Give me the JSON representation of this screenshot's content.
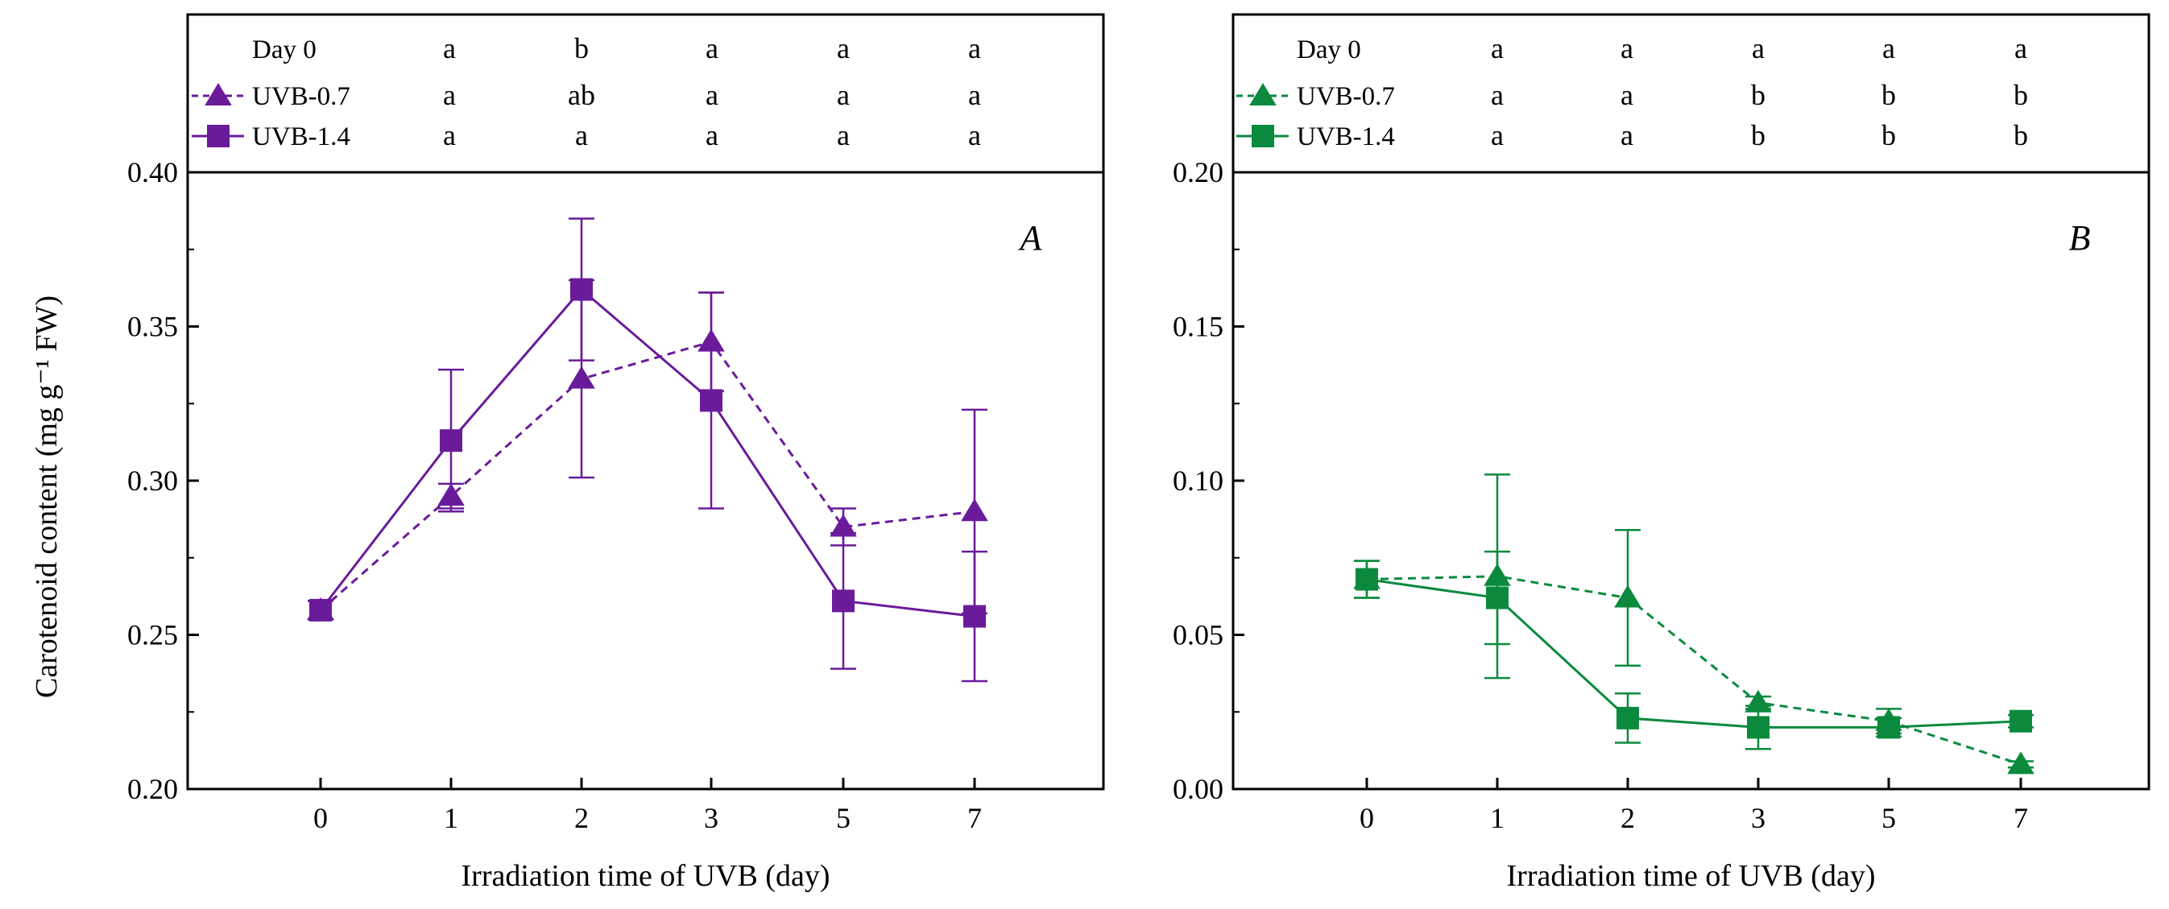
{
  "chart_data": [
    {
      "type": "line",
      "panel": "A",
      "color": "#6a1b9a",
      "x_categories": [
        "0",
        "1",
        "2",
        "3",
        "5",
        "7"
      ],
      "xlabel": "Irradiation time of UVB (day)",
      "ylabel": "Carotenoid content (mg g⁻¹ FW)",
      "ylim": [
        0.2,
        0.4
      ],
      "yticks": [
        "0.20",
        "0.25",
        "0.30",
        "0.35",
        "0.40"
      ],
      "legend": {
        "day0": "Day 0",
        "uvb07": "UVB-0.7",
        "uvb14": "UVB-1.4"
      },
      "significance": {
        "day0": [
          "a",
          "b",
          "a",
          "a",
          "a"
        ],
        "uvb07": [
          "a",
          "ab",
          "a",
          "a",
          "a"
        ],
        "uvb14": [
          "a",
          "a",
          "a",
          "a",
          "a"
        ]
      },
      "series": [
        {
          "name": "UVB-0.7",
          "marker": "triangle",
          "style": "dashed",
          "values": [
            0.258,
            0.295,
            0.333,
            0.345,
            0.285,
            0.29
          ],
          "errors": [
            0.003,
            0.004,
            0.032,
            0.016,
            0.006,
            0.033
          ]
        },
        {
          "name": "UVB-1.4",
          "marker": "square",
          "style": "solid",
          "values": [
            0.258,
            0.313,
            0.362,
            0.326,
            0.261,
            0.256
          ],
          "errors": [
            0.003,
            0.023,
            0.023,
            0.035,
            0.022,
            0.021
          ]
        }
      ]
    },
    {
      "type": "line",
      "panel": "B",
      "color": "#0b8a3e",
      "x_categories": [
        "0",
        "1",
        "2",
        "3",
        "5",
        "7"
      ],
      "xlabel": "Irradiation time of UVB (day)",
      "ylabel": "",
      "ylim": [
        0.0,
        0.2
      ],
      "yticks": [
        "0.00",
        "0.05",
        "0.10",
        "0.15",
        "0.20"
      ],
      "legend": {
        "day0": "Day 0",
        "uvb07": "UVB-0.7",
        "uvb14": "UVB-1.4"
      },
      "significance": {
        "day0": [
          "a",
          "a",
          "a",
          "a",
          "a"
        ],
        "uvb07": [
          "a",
          "a",
          "b",
          "b",
          "b"
        ],
        "uvb14": [
          "a",
          "a",
          "b",
          "b",
          "b"
        ]
      },
      "series": [
        {
          "name": "UVB-0.7",
          "marker": "triangle",
          "style": "dashed",
          "values": [
            0.068,
            0.069,
            0.062,
            0.028,
            0.022,
            0.008
          ],
          "errors": [
            0.006,
            0.033,
            0.022,
            0.002,
            0.004,
            0.001
          ]
        },
        {
          "name": "UVB-1.4",
          "marker": "square",
          "style": "solid",
          "values": [
            0.068,
            0.062,
            0.023,
            0.02,
            0.02,
            0.022
          ],
          "errors": [
            0.006,
            0.015,
            0.008,
            0.007,
            0.003,
            0.002
          ]
        }
      ]
    }
  ]
}
